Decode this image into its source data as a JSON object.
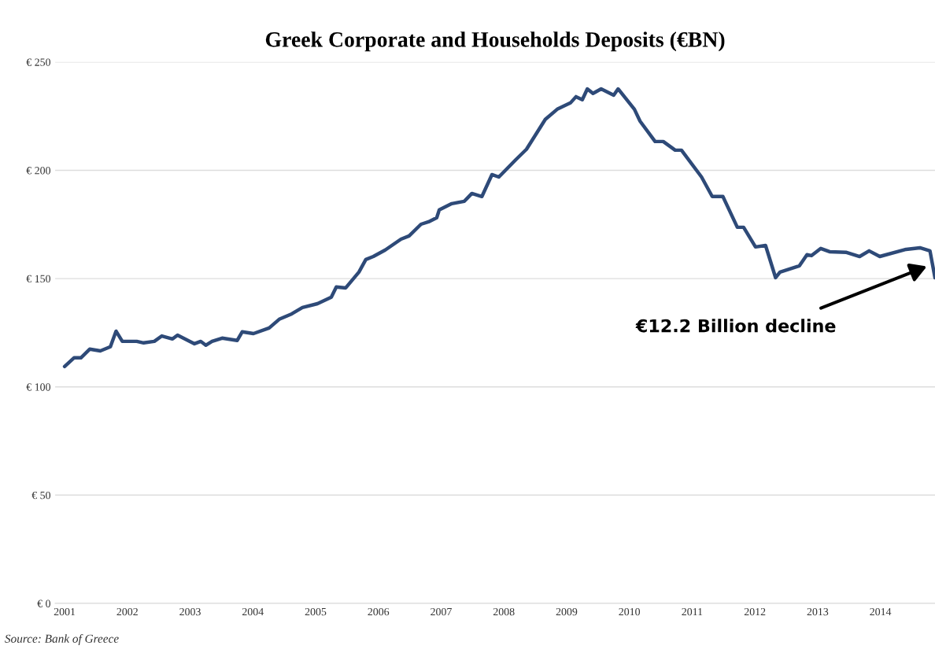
{
  "chart_data": {
    "type": "line",
    "title": "Greek Corporate and Households Deposits (€BN)",
    "x": [
      2001.0,
      2001.15,
      2001.26,
      2001.4,
      2001.57,
      2001.73,
      2001.82,
      2001.92,
      2002.15,
      2002.26,
      2002.43,
      2002.55,
      2002.72,
      2002.8,
      2003.07,
      2003.17,
      2003.25,
      2003.35,
      2003.51,
      2003.75,
      2003.83,
      2004.01,
      2004.26,
      2004.42,
      2004.62,
      2004.79,
      2005.03,
      2005.25,
      2005.33,
      2005.48,
      2005.69,
      2005.8,
      2005.92,
      2006.11,
      2006.36,
      2006.49,
      2006.68,
      2006.8,
      2006.93,
      2006.97,
      2007.17,
      2007.37,
      2007.49,
      2007.65,
      2007.81,
      2007.92,
      2008.19,
      2008.36,
      2008.66,
      2008.85,
      2009.06,
      2009.15,
      2009.25,
      2009.33,
      2009.42,
      2009.55,
      2009.75,
      2009.82,
      2010.08,
      2010.17,
      2010.41,
      2010.54,
      2010.73,
      2010.83,
      2011.15,
      2011.32,
      2011.49,
      2011.72,
      2011.82,
      2012.01,
      2012.17,
      2012.33,
      2012.4,
      2012.71,
      2012.83,
      2012.9,
      2013.05,
      2013.19,
      2013.46,
      2013.67,
      2013.82,
      2013.99,
      2014.41,
      2014.63,
      2014.79,
      2014.87
    ],
    "series": [
      {
        "color": "#2e4a78",
        "values": [
          109.4,
          113.4,
          113.4,
          117.4,
          116.6,
          118.5,
          125.7,
          121.0,
          121.0,
          120.3,
          121.0,
          123.5,
          122.1,
          123.9,
          119.9,
          121.0,
          119.2,
          121.0,
          122.5,
          121.4,
          125.4,
          124.6,
          127.2,
          131.2,
          133.7,
          136.6,
          138.4,
          141.4,
          146.1,
          145.7,
          153.0,
          158.8,
          160.2,
          163.2,
          168.2,
          169.7,
          175.1,
          176.2,
          178.1,
          181.7,
          184.6,
          185.7,
          189.3,
          187.9,
          198.0,
          196.9,
          204.9,
          209.7,
          223.5,
          228.2,
          231.1,
          234.0,
          232.6,
          237.6,
          235.5,
          237.6,
          234.7,
          237.6,
          228.2,
          222.7,
          213.3,
          213.3,
          209.3,
          209.3,
          196.9,
          187.9,
          187.9,
          173.7,
          173.7,
          164.6,
          165.3,
          150.4,
          153.0,
          155.9,
          161.0,
          160.6,
          163.9,
          162.4,
          162.1,
          160.2,
          162.8,
          160.2,
          163.5,
          164.2,
          162.8,
          150.4
        ]
      }
    ],
    "xlim": [
      2000.85,
      2014.87
    ],
    "xticks": [
      2001,
      2002,
      2003,
      2004,
      2005,
      2006,
      2007,
      2008,
      2009,
      2010,
      2011,
      2012,
      2013,
      2014
    ],
    "ylim": [
      0,
      250
    ],
    "yticks": [
      {
        "value": 0,
        "label": "€ 0"
      },
      {
        "value": 50,
        "label": "€ 50"
      },
      {
        "value": 100,
        "label": "€ 100"
      },
      {
        "value": 150,
        "label": "€ 150"
      },
      {
        "value": 200,
        "label": "€ 200"
      },
      {
        "value": 250,
        "label": "€ 250"
      }
    ],
    "grid": "y",
    "annotations": [
      "€12.2 Billion decline",
      "Source: Bank of Greece"
    ]
  }
}
